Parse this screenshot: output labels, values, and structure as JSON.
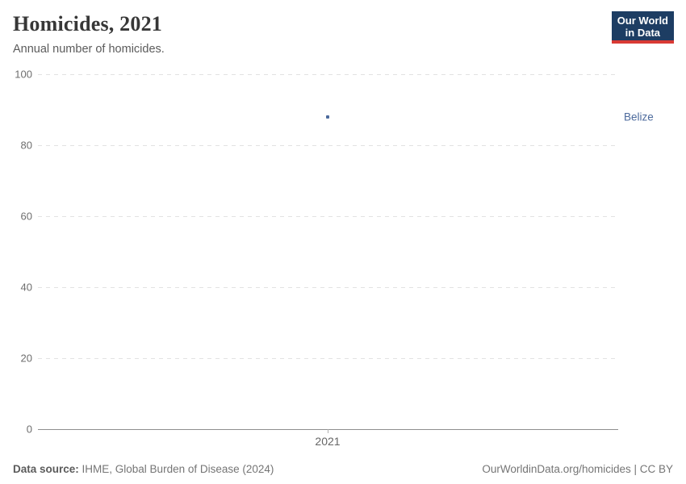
{
  "header": {
    "title": "Homicides, 2021",
    "subtitle": "Annual number of homicides.",
    "logo": {
      "line1": "Our World",
      "line2": "in Data"
    }
  },
  "chart_data": {
    "type": "scatter",
    "title": "Homicides, 2021",
    "subtitle": "Annual number of homicides.",
    "x": [
      2021
    ],
    "x_tick_labels": [
      "2021"
    ],
    "series": [
      {
        "name": "Belize",
        "x": [
          2021
        ],
        "values": [
          88
        ],
        "color": "#4c6a9c"
      }
    ],
    "xlabel": "",
    "ylabel": "",
    "ylim": [
      0,
      100
    ],
    "yticks": [
      0,
      20,
      40,
      60,
      80,
      100
    ],
    "grid": true,
    "gridline_style": "dashed",
    "legend_position": "right"
  },
  "footer": {
    "source_label": "Data source:",
    "source_text": " IHME, Global Burden of Disease (2024)",
    "link_text": "OurWorldinData.org/homicides | CC BY"
  },
  "colors": {
    "accent_blue": "#4c6a9c",
    "logo_navy": "#1d3d63",
    "logo_red": "#d93a34",
    "gridline": "#e2e2e2",
    "axis_line": "#8f8f8f"
  }
}
